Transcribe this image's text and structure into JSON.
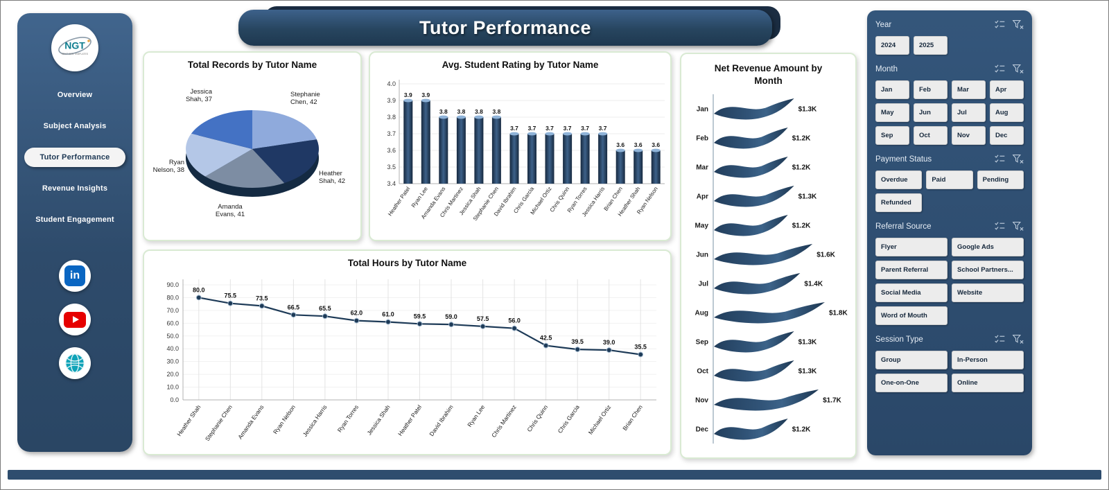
{
  "page": {
    "title": "Tutor Performance"
  },
  "sidebar": {
    "logo": {
      "text": "NGT",
      "subtext": "NEXT GEN TEMPLATES"
    },
    "nav": [
      {
        "label": "Overview",
        "active": false
      },
      {
        "label": "Subject Analysis",
        "active": false
      },
      {
        "label": "Tutor Performance",
        "active": true
      },
      {
        "label": "Revenue Insights",
        "active": false
      },
      {
        "label": "Student Engagement",
        "active": false
      }
    ],
    "social": [
      {
        "name": "linkedin"
      },
      {
        "name": "youtube"
      },
      {
        "name": "website"
      }
    ]
  },
  "chart_data": [
    {
      "type": "pie",
      "title": "Total Records by Tutor Name",
      "labels": [
        "Stephanie Chen",
        "Heather Shah",
        "Amanda Evans",
        "Ryan Nelson",
        "Jessica Shah"
      ],
      "values": [
        42,
        42,
        41,
        38,
        37
      ],
      "colors": [
        "#8faadc",
        "#1f3864",
        "#7d8da3",
        "#b4c7e7",
        "#4472c4"
      ]
    },
    {
      "type": "bar",
      "title": "Avg. Student Rating by Tutor Name",
      "categories": [
        "Heather Patel",
        "Ryan Lee",
        "Amanda Evans",
        "Chris Martinez",
        "Jessica Shah",
        "Stephanie Chen",
        "David Ibrahim",
        "Chris Garcia",
        "Michael Ortiz",
        "Chris Quinn",
        "Ryan Torres",
        "Jessica Harris",
        "Brian Chen",
        "Heather Shah",
        "Ryan Nelson"
      ],
      "values": [
        3.9,
        3.9,
        3.8,
        3.8,
        3.8,
        3.8,
        3.7,
        3.7,
        3.7,
        3.7,
        3.7,
        3.7,
        3.6,
        3.6,
        3.6
      ],
      "ylim": [
        3.4,
        4.0
      ],
      "yticks": [
        3.4,
        3.5,
        3.6,
        3.7,
        3.8,
        3.9,
        4.0
      ],
      "bar_color": "#2e4d6e"
    },
    {
      "type": "line",
      "title": "Total Hours by Tutor Name",
      "categories": [
        "Heather Shah",
        "Stephanie Chen",
        "Amanda Evans",
        "Ryan Nelson",
        "Jessica Harris",
        "Ryan Torres",
        "Jessica Shah",
        "Heather Patel",
        "David Ibrahim",
        "Ryan Lee",
        "Chris Martinez",
        "Chris Quinn",
        "Chris Garcia",
        "Michael Ortiz",
        "Brian Chen"
      ],
      "values": [
        80.0,
        75.5,
        73.5,
        66.5,
        65.5,
        62.0,
        61.0,
        59.5,
        59.0,
        57.5,
        56.0,
        42.5,
        39.5,
        39.0,
        35.5
      ],
      "ylim": [
        0,
        90
      ],
      "yticks": [
        0,
        10,
        20,
        30,
        40,
        50,
        60,
        70,
        80,
        90
      ],
      "line_color": "#1d3a57"
    },
    {
      "type": "area",
      "title": "Net Revenue  Amount by Month",
      "categories": [
        "Jan",
        "Feb",
        "Mar",
        "Apr",
        "May",
        "Jun",
        "Jul",
        "Aug",
        "Sep",
        "Oct",
        "Nov",
        "Dec"
      ],
      "values": [
        1.3,
        1.2,
        1.2,
        1.3,
        1.2,
        1.6,
        1.4,
        1.8,
        1.3,
        1.3,
        1.7,
        1.2
      ],
      "labels": [
        "$1.3K",
        "$1.2K",
        "$1.2K",
        "$1.3K",
        "$1.2K",
        "$1.6K",
        "$1.4K",
        "$1.8K",
        "$1.3K",
        "$1.3K",
        "$1.7K",
        "$1.2K"
      ],
      "color": "#2e4d6e"
    }
  ],
  "slicers": [
    {
      "title": "Year",
      "cols": 4,
      "options": [
        "2024",
        "2025"
      ]
    },
    {
      "title": "Month",
      "cols": 4,
      "options": [
        "Jan",
        "Feb",
        "Mar",
        "Apr",
        "May",
        "Jun",
        "Jul",
        "Aug",
        "Sep",
        "Oct",
        "Nov",
        "Dec"
      ]
    },
    {
      "title": "Payment Status",
      "cols": 3,
      "options": [
        "Overdue",
        "Paid",
        "Pending",
        "Refunded"
      ]
    },
    {
      "title": "Referral Source",
      "cols": 2,
      "options": [
        "Flyer",
        "Google Ads",
        "Parent Referral",
        "School Partners...",
        "Social Media",
        "Website",
        "Word of Mouth"
      ]
    },
    {
      "title": "Session Type",
      "cols": 2,
      "options": [
        "Group",
        "In-Person",
        "One-on-One",
        "Online"
      ]
    }
  ]
}
